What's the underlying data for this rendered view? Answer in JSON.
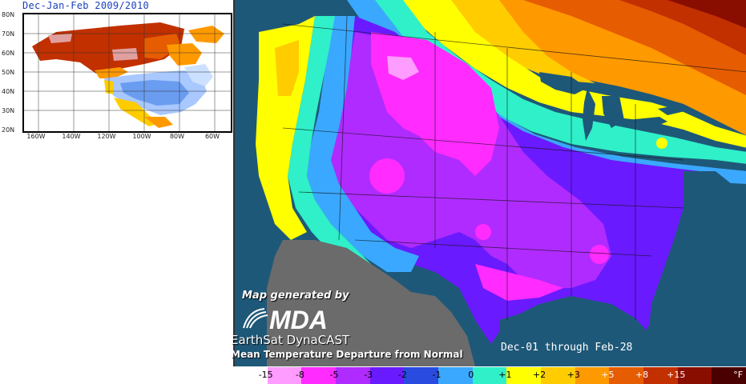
{
  "inset": {
    "title": "Dec-Jan-Feb 2009/2010",
    "lat_labels": [
      "80N",
      "70N",
      "60N",
      "50N",
      "40N",
      "30N",
      "20N"
    ],
    "lon_labels": [
      "160W",
      "140W",
      "120W",
      "100W",
      "80W",
      "60W"
    ]
  },
  "credits": {
    "generated_by": "Map generated by",
    "logo_text": "MDA",
    "product": "EarthSat DynaCAST",
    "subtitle": "Mean Temperature Departure from Normal"
  },
  "period": "Dec-01 through Feb-28",
  "legend": {
    "unit": "°F",
    "labels": [
      "-15",
      "-8",
      "-5",
      "-3",
      "-2",
      "-1",
      "0",
      "+1",
      "+2",
      "+3",
      "+5",
      "+8",
      "+15"
    ],
    "colors": [
      "#ffffff",
      "#ff9cff",
      "#ff2bff",
      "#b02bff",
      "#6a1aff",
      "#2a4be0",
      "#3aa8ff",
      "#2ff0c8",
      "#ffff00",
      "#ffcc00",
      "#ff9900",
      "#e65c00",
      "#c23000",
      "#8a0e00",
      "#4a0000"
    ]
  }
}
